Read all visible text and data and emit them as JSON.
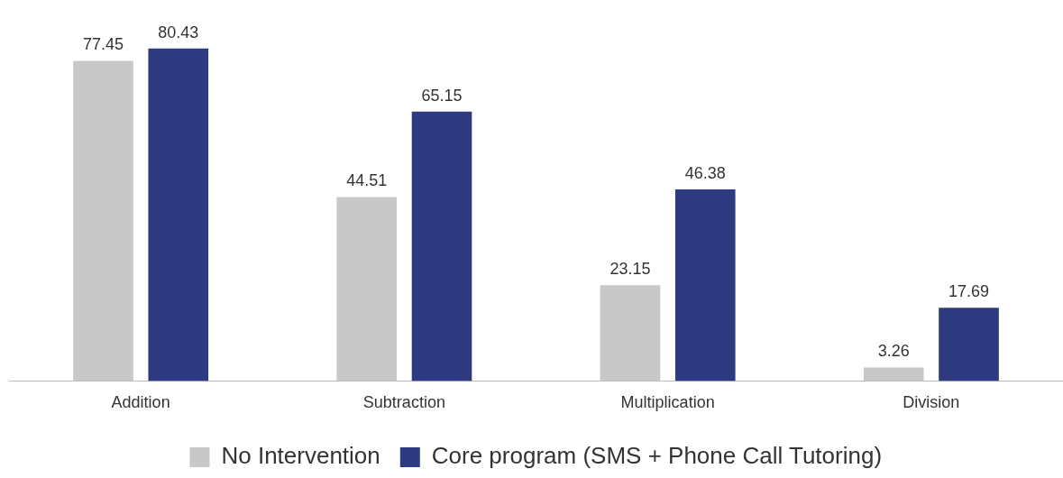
{
  "chart_data": {
    "type": "bar",
    "categories": [
      "Addition",
      "Subtraction",
      "Multiplication",
      "Division"
    ],
    "series": [
      {
        "name": "No Intervention",
        "color": "#c8c8c8",
        "values": [
          77.45,
          44.51,
          23.15,
          3.26
        ]
      },
      {
        "name": "Core program (SMS + Phone Call Tutoring)",
        "color": "#2e3a80",
        "values": [
          80.43,
          65.15,
          46.38,
          17.69
        ]
      }
    ],
    "data_labels": true,
    "grid": false,
    "legend": "bottom"
  }
}
